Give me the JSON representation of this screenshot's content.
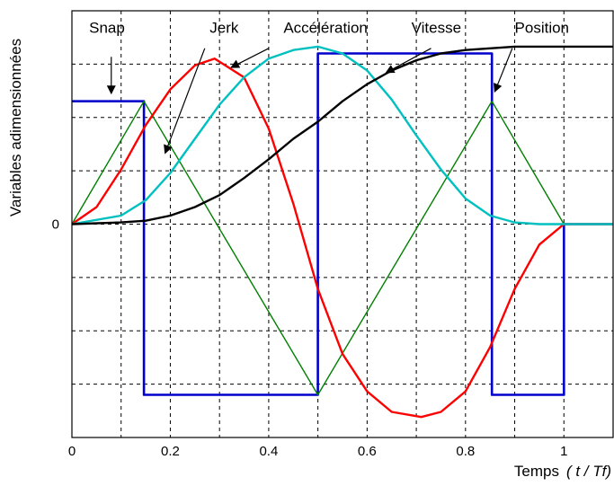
{
  "chart_data": {
    "type": "line",
    "title": "",
    "xlabel": "Temps",
    "xlabel_italic": "( t / Tf)",
    "ylabel": "Variables adimensionnées",
    "xlim": [
      0,
      1.1
    ],
    "ylim": [
      -1.25,
      1.25
    ],
    "grid": true,
    "xticks": [
      0,
      0.2,
      0.4,
      0.6,
      0.8,
      1
    ],
    "xtick_labels": [
      "0",
      "0.2",
      "0.4",
      "0.6",
      "0.8",
      "1"
    ],
    "yticks": [
      0
    ],
    "ytick_labels": [
      "0"
    ],
    "series": [
      {
        "name": "Snap",
        "color": "#0000cc",
        "points": [
          [
            0,
            0.72
          ],
          [
            0.1464,
            0.72
          ],
          [
            0.1464,
            -1.0
          ],
          [
            0.5,
            -1.0
          ],
          [
            0.5,
            1.0
          ],
          [
            0.8536,
            1.0
          ],
          [
            0.8536,
            -1.0
          ],
          [
            1.0,
            -1.0
          ],
          [
            1.0,
            0
          ],
          [
            1.1,
            0
          ]
        ]
      },
      {
        "name": "Jerk",
        "color": "#008000",
        "points": [
          [
            0,
            0
          ],
          [
            0.1464,
            0.72
          ],
          [
            0.5,
            -1.0
          ],
          [
            0.8536,
            0.72
          ],
          [
            1.0,
            0
          ],
          [
            1.1,
            0
          ]
        ]
      },
      {
        "name": "Accélération",
        "color": "#ff0000",
        "points": [
          [
            0,
            0
          ],
          [
            0.05,
            0.1
          ],
          [
            0.1,
            0.32
          ],
          [
            0.15,
            0.58
          ],
          [
            0.2,
            0.79
          ],
          [
            0.25,
            0.93
          ],
          [
            0.29,
            0.97
          ],
          [
            0.35,
            0.86
          ],
          [
            0.4,
            0.56
          ],
          [
            0.45,
            0.12
          ],
          [
            0.5,
            -0.38
          ],
          [
            0.55,
            -0.76
          ],
          [
            0.6,
            -0.98
          ],
          [
            0.65,
            -1.1
          ],
          [
            0.71,
            -1.13
          ],
          [
            0.75,
            -1.1
          ],
          [
            0.8,
            -0.98
          ],
          [
            0.85,
            -0.72
          ],
          [
            0.9,
            -0.38
          ],
          [
            0.95,
            -0.12
          ],
          [
            1.0,
            0
          ],
          [
            1.1,
            0
          ]
        ]
      },
      {
        "name": "Vitesse",
        "color": "#00c0c0",
        "points": [
          [
            0,
            0
          ],
          [
            0.1,
            0.05
          ],
          [
            0.15,
            0.14
          ],
          [
            0.2,
            0.3
          ],
          [
            0.25,
            0.5
          ],
          [
            0.3,
            0.7
          ],
          [
            0.35,
            0.86
          ],
          [
            0.4,
            0.97
          ],
          [
            0.45,
            1.02
          ],
          [
            0.5,
            1.04
          ],
          [
            0.55,
            1.0
          ],
          [
            0.6,
            0.9
          ],
          [
            0.65,
            0.73
          ],
          [
            0.7,
            0.52
          ],
          [
            0.75,
            0.32
          ],
          [
            0.8,
            0.15
          ],
          [
            0.85,
            0.05
          ],
          [
            0.9,
            0.01
          ],
          [
            0.95,
            0
          ],
          [
            1.0,
            0
          ],
          [
            1.1,
            0
          ]
        ]
      },
      {
        "name": "Position",
        "color": "#000000",
        "points": [
          [
            0,
            0
          ],
          [
            0.1,
            0.01
          ],
          [
            0.15,
            0.02
          ],
          [
            0.2,
            0.05
          ],
          [
            0.25,
            0.1
          ],
          [
            0.3,
            0.17
          ],
          [
            0.35,
            0.27
          ],
          [
            0.4,
            0.38
          ],
          [
            0.45,
            0.5
          ],
          [
            0.5,
            0.6
          ],
          [
            0.55,
            0.72
          ],
          [
            0.6,
            0.82
          ],
          [
            0.65,
            0.9
          ],
          [
            0.7,
            0.96
          ],
          [
            0.75,
            1.0
          ],
          [
            0.8,
            1.02
          ],
          [
            0.85,
            1.03
          ],
          [
            0.9,
            1.04
          ],
          [
            0.95,
            1.04
          ],
          [
            1.0,
            1.04
          ],
          [
            1.1,
            1.04
          ]
        ]
      }
    ],
    "annotations": [
      {
        "text": "Snap",
        "label_at": [
          0.035,
          1.12
        ],
        "arrow_from": [
          0.08,
          0.98
        ],
        "arrow_to": [
          0.08,
          0.77
        ]
      },
      {
        "text": "Jerk",
        "label_at": [
          0.28,
          1.12
        ],
        "arrow_from": [
          0.27,
          1.03
        ],
        "arrow_to": [
          0.19,
          0.42
        ]
      },
      {
        "text": "Accélération",
        "label_at": [
          0.43,
          1.12
        ],
        "arrow_from": [
          0.4,
          1.03
        ],
        "arrow_to": [
          0.325,
          0.92
        ]
      },
      {
        "text": "Vitesse",
        "label_at": [
          0.69,
          1.12
        ],
        "arrow_from": [
          0.73,
          1.03
        ],
        "arrow_to": [
          0.64,
          0.89
        ]
      },
      {
        "text": "Position",
        "label_at": [
          0.9,
          1.12
        ],
        "arrow_from": [
          0.895,
          1.03
        ],
        "arrow_to": [
          0.86,
          0.78
        ]
      }
    ]
  }
}
